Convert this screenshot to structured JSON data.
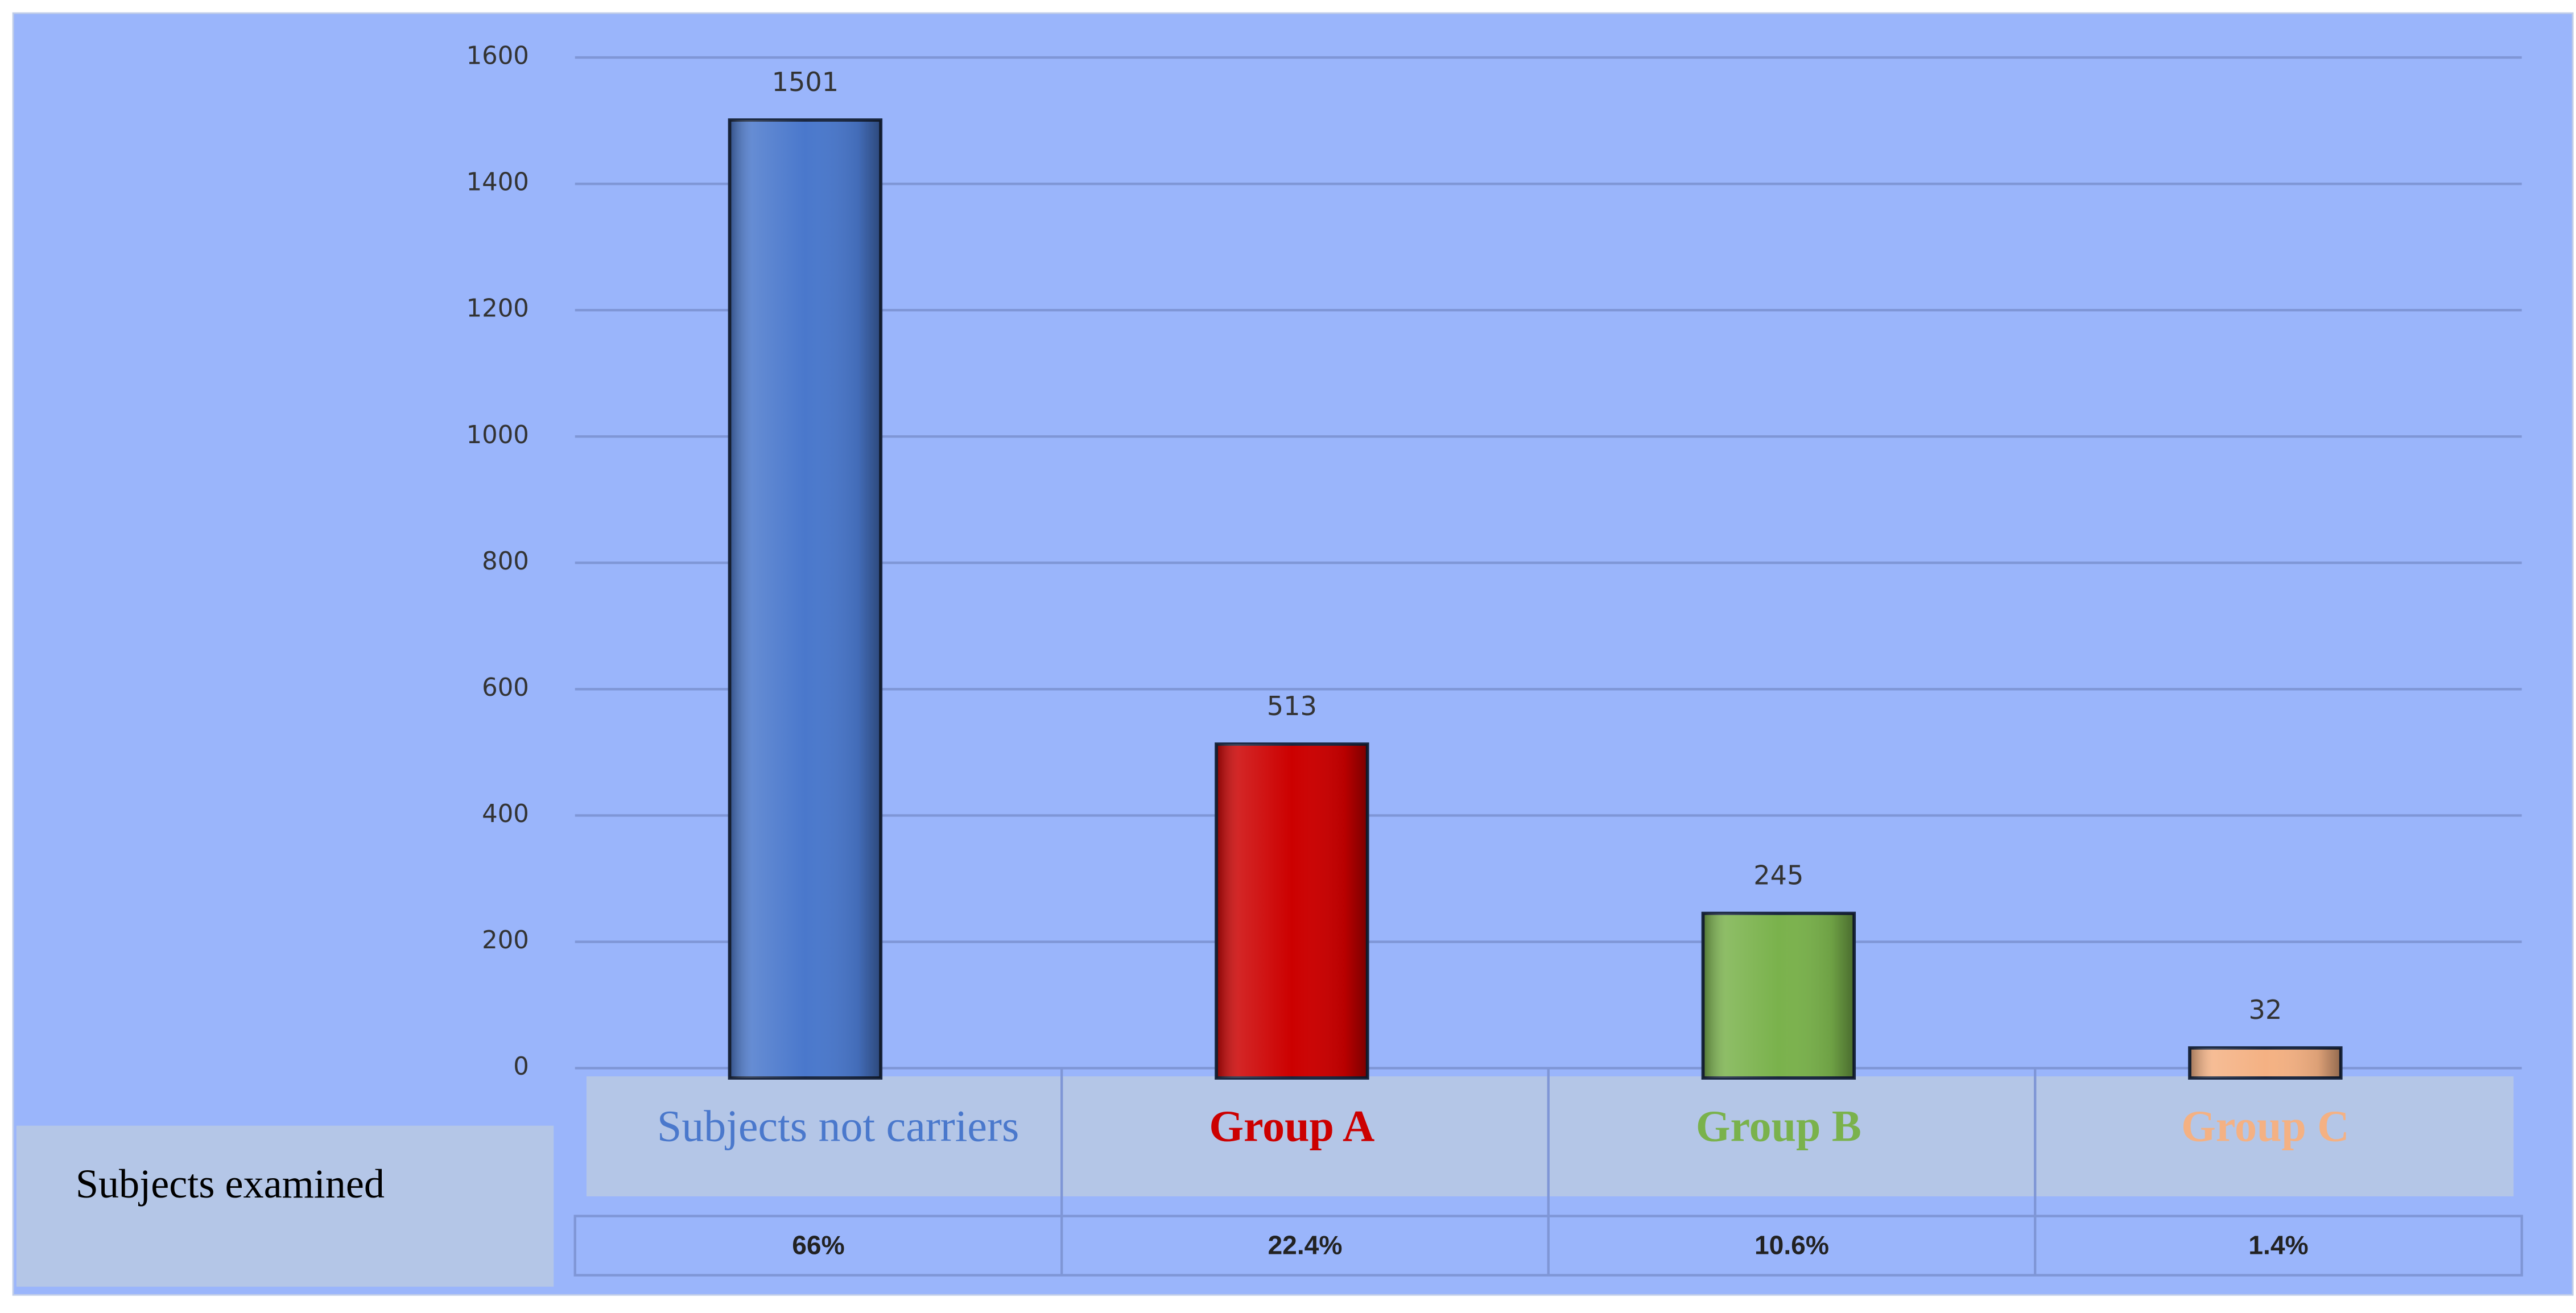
{
  "chart_data": {
    "type": "bar",
    "categories": [
      "Subjects not carriers",
      "Group A",
      "Group B",
      "Group C"
    ],
    "values": [
      1501,
      513,
      245,
      32
    ],
    "colors": [
      "#4a78cc",
      "#cc0000",
      "#7ab24c",
      "#f4b183"
    ],
    "ylim": [
      0,
      1600
    ],
    "yticks": [
      0,
      200,
      400,
      600,
      800,
      1000,
      1200,
      1400,
      1600
    ],
    "grid": true,
    "table": {
      "row_label": "Subjects examined",
      "cells": [
        "66%",
        "22.4%",
        "10.6%",
        "1.4%"
      ]
    }
  }
}
